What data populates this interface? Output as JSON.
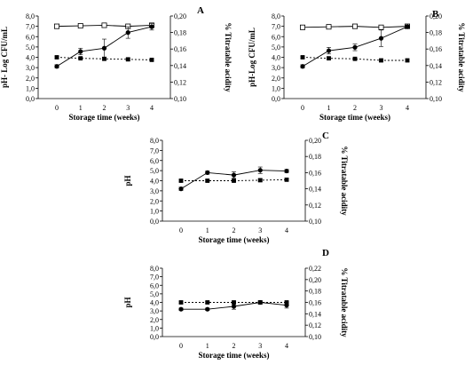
{
  "chart_data": [
    {
      "type": "line",
      "panel_label": "A",
      "xlabel": "Storage time (weeks)",
      "ylabel": "pH- Log CFU/mL",
      "y2label": "% Titratable acidity",
      "x": [
        0,
        1,
        2,
        3,
        4
      ],
      "ylim": [
        0,
        8
      ],
      "yticks": [
        "0,0",
        "1,0",
        "2,0",
        "3,0",
        "4,0",
        "5,0",
        "6,0",
        "7,0",
        "8,0"
      ],
      "y2lim": [
        0.1,
        0.2
      ],
      "y2ticks": [
        "0,10",
        "0,12",
        "0,14",
        "0,16",
        "0,18",
        "0,20"
      ],
      "series": [
        {
          "values": [
            7.0,
            7.05,
            7.1,
            7.0,
            7.1
          ],
          "marker": "open-square",
          "line": "solid",
          "axis": "left",
          "errors": [
            0.1,
            0.1,
            0.1,
            0.2,
            0.2
          ]
        },
        {
          "values": [
            4.0,
            3.9,
            3.85,
            3.8,
            3.75
          ],
          "marker": "filled-square",
          "line": "dashed",
          "axis": "left",
          "errors": [
            0.1,
            0.1,
            0.1,
            0.1,
            0.1
          ]
        },
        {
          "values": [
            0.139,
            0.157,
            0.161,
            0.18,
            0.187
          ],
          "marker": "filled-circle",
          "line": "solid",
          "axis": "right",
          "errors": [
            0.002,
            0.004,
            0.011,
            0.007,
            0.004
          ]
        }
      ]
    },
    {
      "type": "line",
      "panel_label": "B",
      "xlabel": "Storage time (weeks)",
      "ylabel": "pH-Log CFU/mL",
      "y2label": "% Titratable acidity",
      "x": [
        0,
        1,
        2,
        3,
        4
      ],
      "ylim": [
        0,
        8
      ],
      "yticks": [
        "0,0",
        "1,0",
        "2,0",
        "3,0",
        "4,0",
        "5,0",
        "6,0",
        "7,0",
        "8,0"
      ],
      "y2lim": [
        0.1,
        0.2
      ],
      "y2ticks": [
        "0,10",
        "0,12",
        "0,14",
        "0,16",
        "0,18",
        "0,20"
      ],
      "series": [
        {
          "values": [
            6.9,
            6.95,
            7.0,
            6.9,
            7.0
          ],
          "marker": "open-square",
          "line": "solid",
          "axis": "left",
          "errors": [
            0.1,
            0.1,
            0.1,
            0.1,
            0.2
          ]
        },
        {
          "values": [
            4.0,
            3.9,
            3.85,
            3.7,
            3.7
          ],
          "marker": "filled-square",
          "line": "dashed",
          "axis": "left",
          "errors": [
            0.1,
            0.1,
            0.1,
            0.1,
            0.1
          ]
        },
        {
          "values": [
            0.139,
            0.158,
            0.162,
            0.173,
            0.187
          ],
          "marker": "filled-circle",
          "line": "solid",
          "axis": "right",
          "errors": [
            0.002,
            0.004,
            0.004,
            0.01,
            0.002
          ]
        }
      ]
    },
    {
      "type": "line",
      "panel_label": "C",
      "xlabel": "Storage time (weeks)",
      "ylabel": "pH",
      "y2label": "% Titratable acidity",
      "x": [
        0,
        1,
        2,
        3,
        4
      ],
      "ylim": [
        0,
        8
      ],
      "yticks": [
        "0,0",
        "1,0",
        "2,0",
        "3,0",
        "4,0",
        "5,0",
        "6,0",
        "7,0",
        "8,0"
      ],
      "y2lim": [
        0.1,
        0.2
      ],
      "y2ticks": [
        "0,10",
        "0,12",
        "0,14",
        "0,16",
        "0,18",
        "0,20"
      ],
      "series": [
        {
          "values": [
            4.0,
            4.0,
            4.0,
            4.05,
            4.1
          ],
          "marker": "filled-square",
          "line": "dashed",
          "axis": "left",
          "errors": [
            0.1,
            0.1,
            0.1,
            0.1,
            0.1
          ]
        },
        {
          "values": [
            0.14,
            0.16,
            0.157,
            0.163,
            0.162
          ],
          "marker": "filled-circle",
          "line": "solid",
          "axis": "right",
          "errors": [
            0.002,
            0.002,
            0.004,
            0.004,
            0.002
          ]
        }
      ]
    },
    {
      "type": "line",
      "panel_label": "D",
      "xlabel": "Storage time (weeks)",
      "ylabel": "pH",
      "y2label": "% Titratable acidity",
      "x": [
        0,
        1,
        2,
        3,
        4
      ],
      "ylim": [
        0,
        8
      ],
      "yticks": [
        "0,0",
        "1,0",
        "2,0",
        "3,0",
        "4,0",
        "5,0",
        "6,0",
        "7,0",
        "8,0"
      ],
      "y2lim": [
        0.1,
        0.22
      ],
      "y2ticks": [
        "0,10",
        "0,12",
        "0,14",
        "0,16",
        "0,18",
        "0,20",
        "0,22"
      ],
      "series": [
        {
          "values": [
            4.0,
            4.0,
            4.0,
            4.0,
            4.0
          ],
          "marker": "filled-square",
          "line": "dashed",
          "axis": "left",
          "errors": [
            0.1,
            0.1,
            0.1,
            0.1,
            0.1
          ]
        },
        {
          "values": [
            0.148,
            0.148,
            0.153,
            0.16,
            0.155
          ],
          "marker": "filled-circle",
          "line": "solid",
          "axis": "right",
          "errors": [
            0.002,
            0.002,
            0.005,
            0.003,
            0.005
          ]
        }
      ]
    }
  ]
}
